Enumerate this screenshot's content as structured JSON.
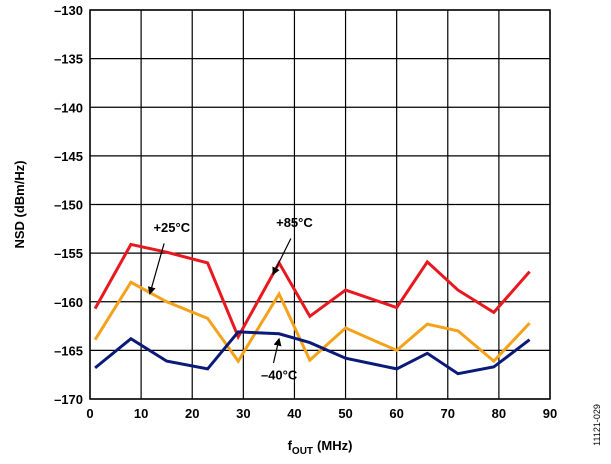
{
  "chart_data": {
    "type": "line",
    "xlabel": "f",
    "xlabel_sub": "OUT",
    "xlabel_unit": "(MHz)",
    "ylabel": "NSD (dBm/Hz)",
    "xlim": [
      0,
      90
    ],
    "ylim": [
      -170,
      -130
    ],
    "xticks": [
      0,
      10,
      20,
      30,
      40,
      50,
      60,
      70,
      80,
      90
    ],
    "yticks": [
      -130,
      -135,
      -140,
      -145,
      -150,
      -155,
      -160,
      -165,
      -170
    ],
    "xtick_labels": [
      "0",
      "10",
      "20",
      "30",
      "40",
      "50",
      "60",
      "70",
      "80",
      "90"
    ],
    "ytick_labels": [
      "–130",
      "–135",
      "–140",
      "–145",
      "–150",
      "–155",
      "–160",
      "–165",
      "–170"
    ],
    "grid": true,
    "legend": "none",
    "series": [
      {
        "name": "+85°C",
        "color": "#e8181f",
        "x": [
          1,
          8,
          15,
          23,
          29,
          37,
          43,
          50,
          60,
          66,
          72,
          79,
          86
        ],
        "y": [
          -160.7,
          -154.1,
          -154.9,
          -156.0,
          -163.6,
          -156.0,
          -161.5,
          -158.8,
          -160.6,
          -155.9,
          -158.8,
          -161.1,
          -156.9
        ]
      },
      {
        "name": "+25°C",
        "color": "#f5a21b",
        "x": [
          1,
          8,
          15,
          23,
          29,
          37,
          43,
          50,
          60,
          66,
          72,
          79,
          86
        ],
        "y": [
          -163.9,
          -158.0,
          -160.0,
          -161.7,
          -166.1,
          -159.2,
          -166.0,
          -162.7,
          -165.0,
          -162.3,
          -163.0,
          -166.1,
          -162.2
        ]
      },
      {
        "name": "–40°C",
        "color": "#0b1a78",
        "x": [
          1,
          8,
          15,
          23,
          29,
          37,
          43,
          50,
          60,
          66,
          72,
          79,
          86
        ],
        "y": [
          -166.8,
          -163.8,
          -166.1,
          -166.9,
          -163.1,
          -163.3,
          -164.2,
          -165.8,
          -166.9,
          -165.3,
          -167.4,
          -166.7,
          -163.9
        ]
      }
    ],
    "annotations": [
      {
        "text": "+25°C",
        "series": 1,
        "label_x": 16,
        "label_y": -152.3,
        "arrow_from": [
          14.5,
          -154.0
        ],
        "arrow_to": [
          11.7,
          -159.2
        ]
      },
      {
        "text": "+85°C",
        "series": 0,
        "label_x": 40,
        "label_y": -151.8,
        "arrow_from": [
          39.3,
          -153.5
        ],
        "arrow_to": [
          35.8,
          -157.2
        ]
      },
      {
        "text": "–40°C",
        "series": 2,
        "label_x": 37,
        "label_y": -167.5,
        "arrow_from": [
          35.9,
          -166.3
        ],
        "arrow_to": [
          37.0,
          -163.8
        ]
      }
    ],
    "figure_id": "11121-029"
  }
}
